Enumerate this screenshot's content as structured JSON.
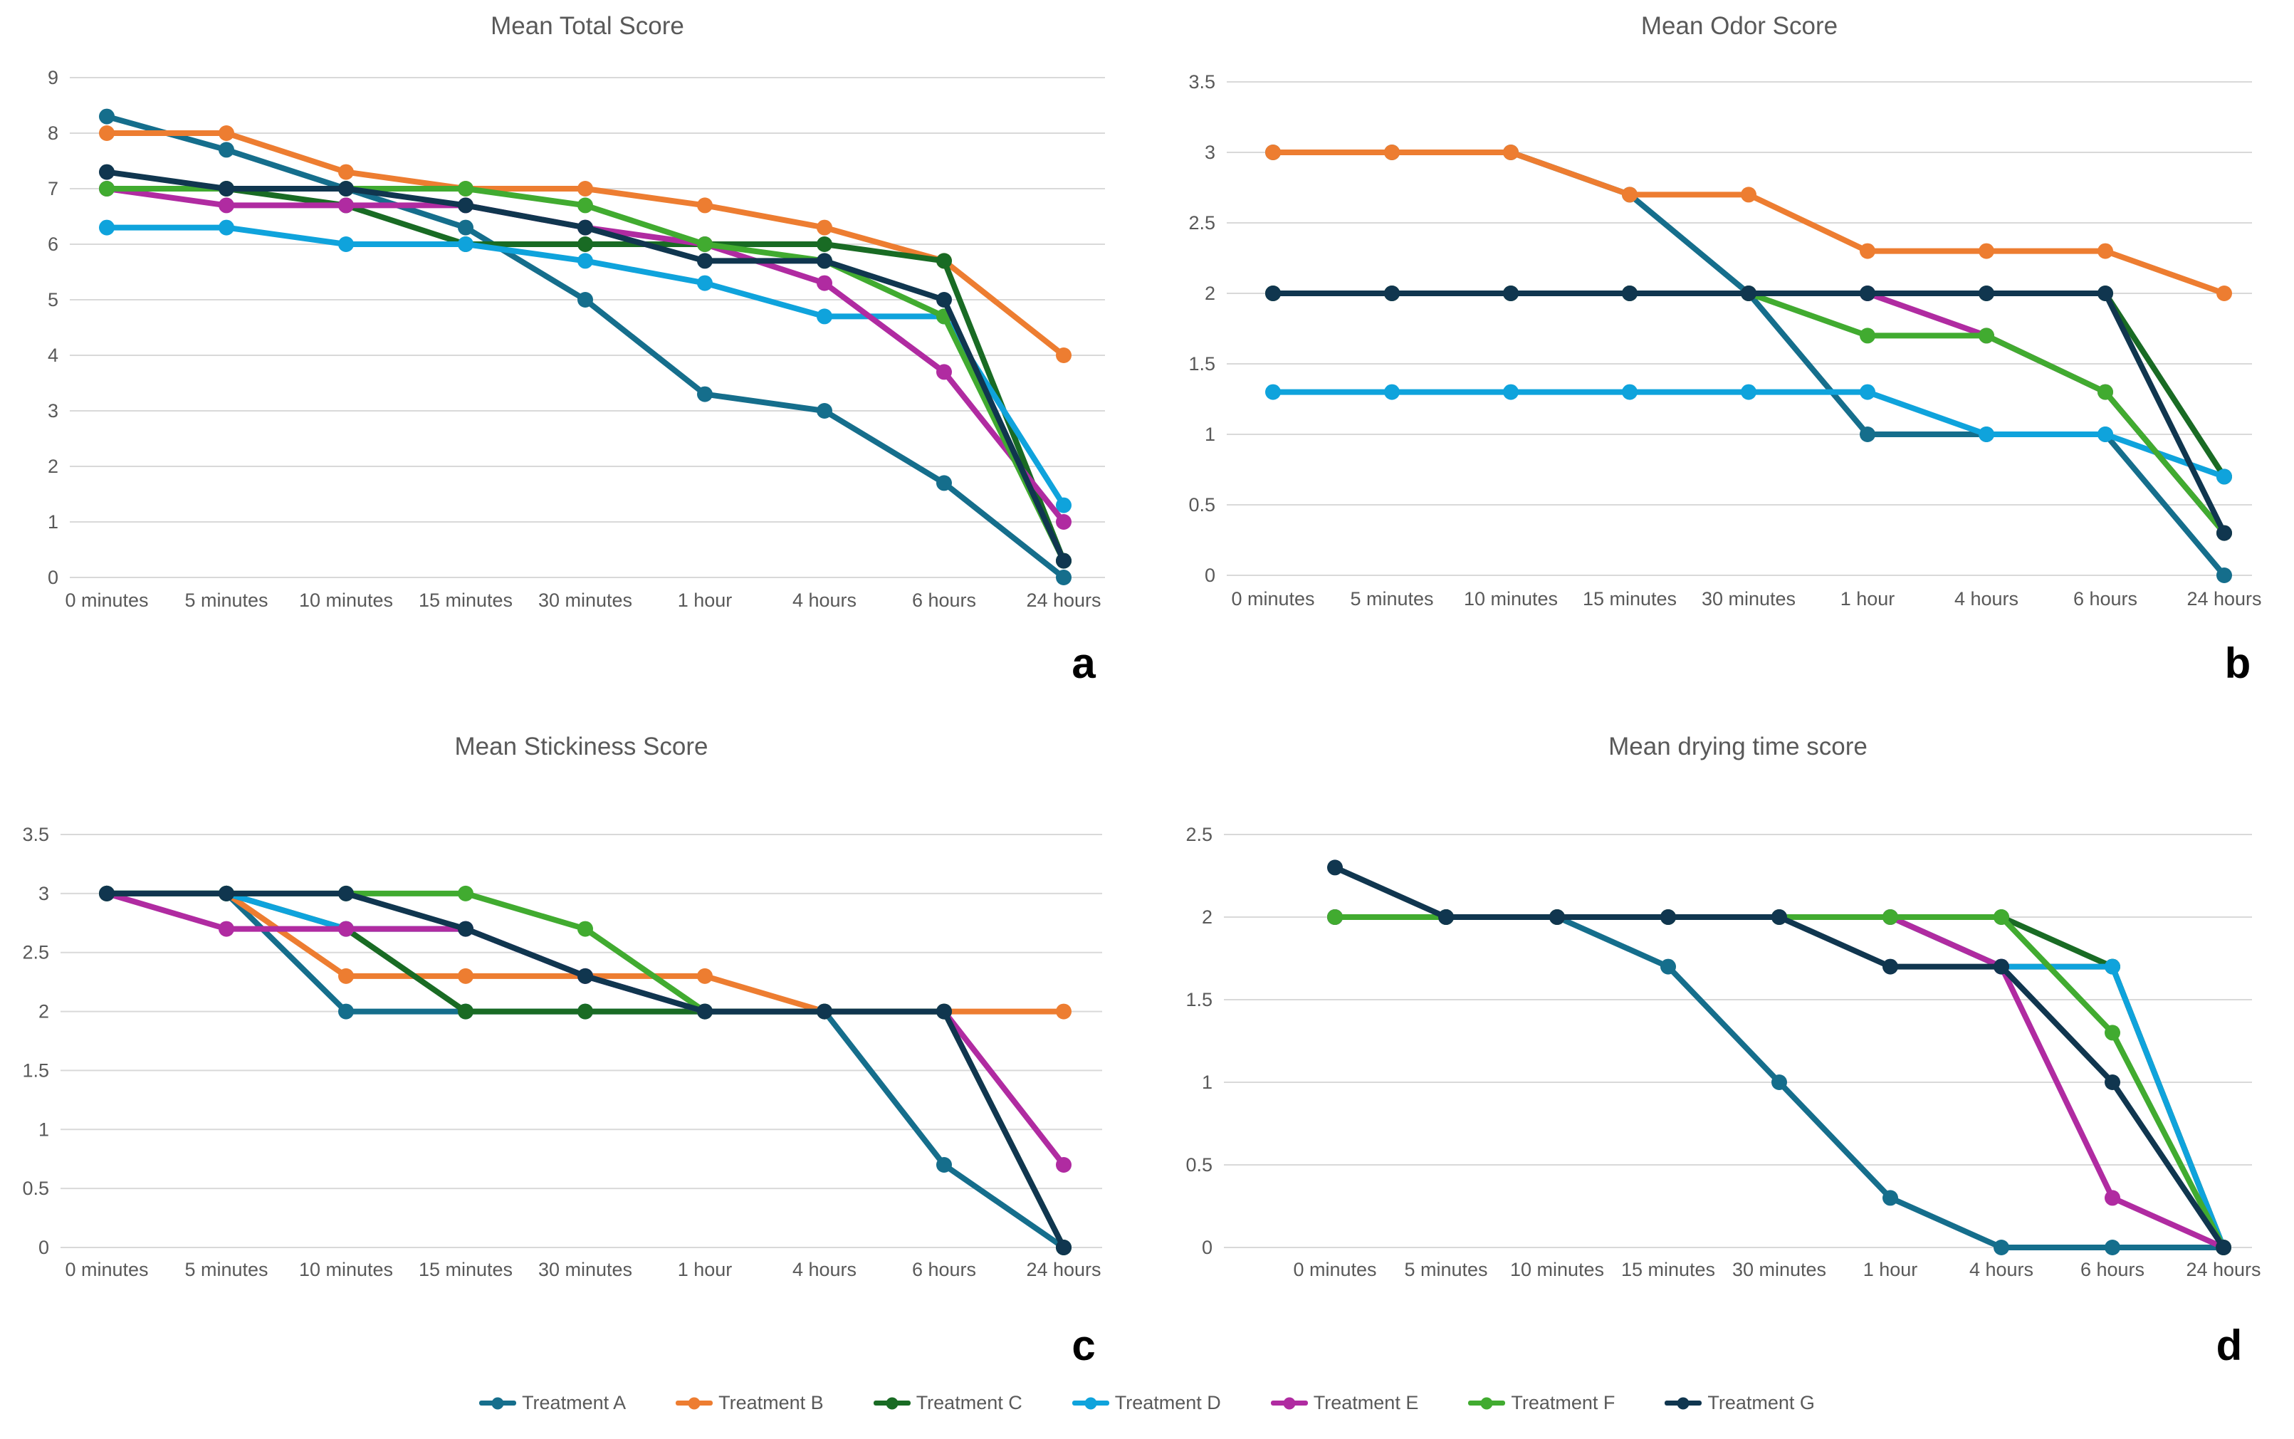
{
  "style": {
    "background": "#FFFFFF",
    "grid_color": "#D9D9D9",
    "axis_label_color": "#595959",
    "title_color": "#595959",
    "corner_letter_color": "#000000"
  },
  "legend": {
    "position": "bottom-center",
    "items": [
      {
        "key": "treatment-a",
        "label": "Treatment A",
        "color": "#156E8C"
      },
      {
        "key": "treatment-b",
        "label": "Treatment B",
        "color": "#ED7D31"
      },
      {
        "key": "treatment-c",
        "label": "Treatment C",
        "color": "#196B24"
      },
      {
        "key": "treatment-d",
        "label": "Treatment D",
        "color": "#0FA3DC"
      },
      {
        "key": "treatment-e",
        "label": "Treatment E",
        "color": "#B02BA1"
      },
      {
        "key": "treatment-f",
        "label": "Treatment F",
        "color": "#41AB30"
      },
      {
        "key": "treatment-g",
        "label": "Treatment G",
        "color": "#10364F"
      }
    ]
  },
  "chart_data": [
    {
      "id": "a",
      "type": "line",
      "title": "Mean Total Score",
      "corner_label": "a",
      "grid": true,
      "x_categories": [
        "0 minutes",
        "5 minutes",
        "10 minutes",
        "15 minutes",
        "30 minutes",
        "1 hour",
        "4 hours",
        "6 hours",
        "24 hours"
      ],
      "y_axis": {
        "min": 0,
        "max": 9,
        "step": 1,
        "tick_labels": [
          "0",
          "1",
          "2",
          "3",
          "4",
          "5",
          "6",
          "7",
          "8",
          "9"
        ]
      },
      "series": [
        {
          "name": "Treatment A",
          "color": "#156E8C",
          "values": [
            8.3,
            7.7,
            7.0,
            6.3,
            5.0,
            3.3,
            3.0,
            1.7,
            0.0
          ]
        },
        {
          "name": "Treatment B",
          "color": "#ED7D31",
          "values": [
            8.0,
            8.0,
            7.3,
            7.0,
            7.0,
            6.7,
            6.3,
            5.7,
            4.0
          ]
        },
        {
          "name": "Treatment C",
          "color": "#196B24",
          "values": [
            7.0,
            7.0,
            6.7,
            6.0,
            6.0,
            6.0,
            6.0,
            5.7,
            0.3
          ]
        },
        {
          "name": "Treatment D",
          "color": "#0FA3DC",
          "values": [
            6.3,
            6.3,
            6.0,
            6.0,
            5.7,
            5.3,
            4.7,
            4.7,
            1.3
          ]
        },
        {
          "name": "Treatment E",
          "color": "#B02BA1",
          "values": [
            7.0,
            6.7,
            6.7,
            6.7,
            6.3,
            6.0,
            5.3,
            3.7,
            1.0
          ]
        },
        {
          "name": "Treatment F",
          "color": "#41AB30",
          "values": [
            7.0,
            7.0,
            7.0,
            7.0,
            6.7,
            6.0,
            5.7,
            4.7,
            0.3
          ]
        },
        {
          "name": "Treatment G",
          "color": "#10364F",
          "values": [
            7.3,
            7.0,
            7.0,
            6.7,
            6.3,
            5.7,
            5.7,
            5.0,
            0.3
          ]
        }
      ]
    },
    {
      "id": "b",
      "type": "line",
      "title": "Mean Odor Score",
      "corner_label": "b",
      "grid": true,
      "x_categories": [
        "0 minutes",
        "5 minutes",
        "10 minutes",
        "15 minutes",
        "30 minutes",
        "1 hour",
        "4 hours",
        "6 hours",
        "24 hours"
      ],
      "y_axis": {
        "min": 0,
        "max": 3.5,
        "step": 0.5,
        "tick_labels": [
          "0",
          "0.5",
          "1",
          "1.5",
          "2",
          "2.5",
          "3",
          "3.5"
        ]
      },
      "series": [
        {
          "name": "Treatment A",
          "color": "#156E8C",
          "values": [
            3.0,
            3.0,
            3.0,
            2.7,
            2.0,
            1.0,
            1.0,
            1.0,
            0.0
          ]
        },
        {
          "name": "Treatment B",
          "color": "#ED7D31",
          "values": [
            3.0,
            3.0,
            3.0,
            2.7,
            2.7,
            2.3,
            2.3,
            2.3,
            2.0
          ]
        },
        {
          "name": "Treatment C",
          "color": "#196B24",
          "values": [
            2.0,
            2.0,
            2.0,
            2.0,
            2.0,
            2.0,
            2.0,
            2.0,
            0.7
          ]
        },
        {
          "name": "Treatment D",
          "color": "#0FA3DC",
          "values": [
            1.3,
            1.3,
            1.3,
            1.3,
            1.3,
            1.3,
            1.0,
            1.0,
            0.7
          ]
        },
        {
          "name": "Treatment E",
          "color": "#B02BA1",
          "values": [
            2.0,
            2.0,
            2.0,
            2.0,
            2.0,
            2.0,
            1.7,
            1.3,
            0.3
          ]
        },
        {
          "name": "Treatment F",
          "color": "#41AB30",
          "values": [
            2.0,
            2.0,
            2.0,
            2.0,
            2.0,
            1.7,
            1.7,
            1.3,
            0.3
          ]
        },
        {
          "name": "Treatment G",
          "color": "#10364F",
          "values": [
            2.0,
            2.0,
            2.0,
            2.0,
            2.0,
            2.0,
            2.0,
            2.0,
            0.3
          ]
        }
      ]
    },
    {
      "id": "c",
      "type": "line",
      "title": "Mean Stickiness Score",
      "corner_label": "c",
      "grid": true,
      "x_categories": [
        "0 minutes",
        "5 minutes",
        "10 minutes",
        "15 minutes",
        "30 minutes",
        "1 hour",
        "4 hours",
        "6 hours",
        "24 hours"
      ],
      "y_axis": {
        "min": 0,
        "max": 3.5,
        "step": 0.5,
        "tick_labels": [
          "0",
          "0.5",
          "1",
          "1.5",
          "2",
          "2.5",
          "3",
          "3.5"
        ]
      },
      "series": [
        {
          "name": "Treatment A",
          "color": "#156E8C",
          "values": [
            3.0,
            3.0,
            2.0,
            2.0,
            2.0,
            2.0,
            2.0,
            0.7,
            0.0
          ]
        },
        {
          "name": "Treatment B",
          "color": "#ED7D31",
          "values": [
            3.0,
            3.0,
            2.3,
            2.3,
            2.3,
            2.3,
            2.0,
            2.0,
            2.0
          ]
        },
        {
          "name": "Treatment C",
          "color": "#196B24",
          "values": [
            3.0,
            3.0,
            2.7,
            2.0,
            2.0,
            2.0,
            2.0,
            2.0,
            0.0
          ]
        },
        {
          "name": "Treatment D",
          "color": "#0FA3DC",
          "values": [
            3.0,
            3.0,
            2.7,
            2.7,
            2.3,
            2.0,
            2.0,
            2.0,
            null
          ]
        },
        {
          "name": "Treatment E",
          "color": "#B02BA1",
          "values": [
            3.0,
            2.7,
            2.7,
            2.7,
            2.3,
            2.0,
            2.0,
            2.0,
            0.7
          ]
        },
        {
          "name": "Treatment F",
          "color": "#41AB30",
          "values": [
            3.0,
            3.0,
            3.0,
            3.0,
            2.7,
            2.0,
            2.0,
            2.0,
            null
          ]
        },
        {
          "name": "Treatment G",
          "color": "#10364F",
          "values": [
            3.0,
            3.0,
            3.0,
            2.7,
            2.3,
            2.0,
            2.0,
            2.0,
            0.0
          ]
        }
      ]
    },
    {
      "id": "d",
      "type": "line",
      "title": "Mean drying time score",
      "corner_label": "d",
      "grid": true,
      "x_categories": [
        "0 minutes",
        "5 minutes",
        "10 minutes",
        "15 minutes",
        "30 minutes",
        "1 hour",
        "4 hours",
        "6 hours",
        "24 hours"
      ],
      "y_axis": {
        "min": 0,
        "max": 2.5,
        "step": 0.5,
        "tick_labels": [
          "0",
          "0.5",
          "1",
          "1.5",
          "2",
          "2.5"
        ]
      },
      "series": [
        {
          "name": "Treatment A",
          "color": "#156E8C",
          "values": [
            2.0,
            2.0,
            2.0,
            1.7,
            1.0,
            0.3,
            0.0,
            0.0,
            0.0
          ]
        },
        {
          "name": "Treatment B",
          "color": "#ED7D31",
          "values": [
            2.0,
            2.0,
            2.0,
            2.0,
            2.0,
            2.0,
            1.7,
            1.7,
            0.0
          ]
        },
        {
          "name": "Treatment C",
          "color": "#196B24",
          "values": [
            2.0,
            2.0,
            2.0,
            2.0,
            2.0,
            2.0,
            2.0,
            1.7,
            0.0
          ]
        },
        {
          "name": "Treatment D",
          "color": "#0FA3DC",
          "values": [
            2.0,
            2.0,
            2.0,
            2.0,
            2.0,
            2.0,
            1.7,
            1.7,
            0.0
          ]
        },
        {
          "name": "Treatment E",
          "color": "#B02BA1",
          "values": [
            2.0,
            2.0,
            2.0,
            2.0,
            2.0,
            2.0,
            1.7,
            0.3,
            0.0
          ]
        },
        {
          "name": "Treatment F",
          "color": "#41AB30",
          "values": [
            2.0,
            2.0,
            2.0,
            2.0,
            2.0,
            2.0,
            2.0,
            1.3,
            0.0
          ]
        },
        {
          "name": "Treatment G",
          "color": "#10364F",
          "values": [
            2.3,
            2.0,
            2.0,
            2.0,
            2.0,
            1.7,
            1.7,
            1.0,
            0.0
          ]
        }
      ]
    }
  ]
}
